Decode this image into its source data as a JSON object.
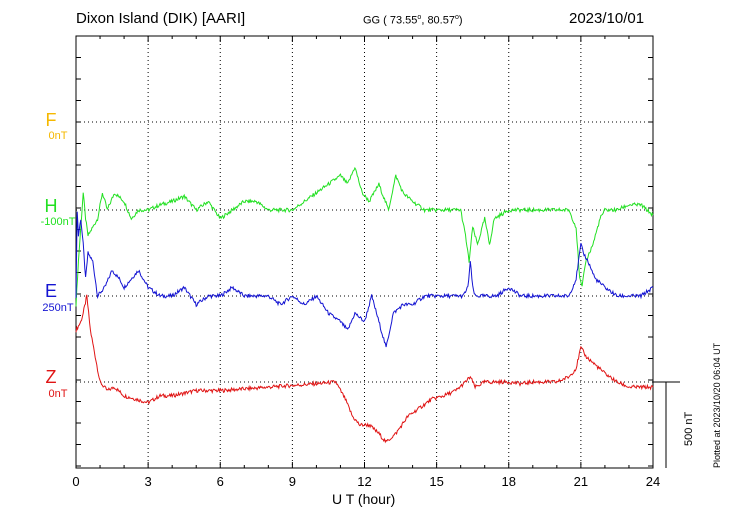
{
  "header": {
    "station": "Dixon Island (DIK)  [AARI]",
    "coords": "GG ( 73.55°,  80.57°)",
    "date": "2023/10/01"
  },
  "footer": {
    "plotted": "Plotted at 2023/10/20 06:04 UT",
    "scale": "500 nT"
  },
  "colors": {
    "F": "#f5b800",
    "H": "#22e022",
    "E": "#1414d2",
    "Z": "#e01414",
    "axis": "#000000"
  },
  "components": [
    {
      "name": "F",
      "base": "0nT"
    },
    {
      "name": "H",
      "base": "-100nT"
    },
    {
      "name": "E",
      "base": "250nT"
    },
    {
      "name": "Z",
      "base": "0nT"
    }
  ],
  "chart_data": {
    "type": "line",
    "xlabel": "U T (hour)",
    "xlim": [
      0,
      24
    ],
    "xticks": [
      "0",
      "3",
      "6",
      "9",
      "12",
      "15",
      "18",
      "21",
      "24"
    ],
    "y_unit": "nT",
    "scale_bar_nT": 500,
    "series": [
      {
        "name": "F",
        "x": [],
        "y": []
      },
      {
        "name": "H",
        "x": [
          0,
          0.1,
          0.2,
          0.3,
          0.4,
          0.5,
          0.7,
          0.9,
          1.1,
          1.3,
          1.6,
          2.0,
          2.3,
          2.6,
          3.0,
          3.5,
          4.0,
          4.5,
          5.0,
          5.5,
          6.0,
          6.5,
          7.0,
          7.5,
          8.0,
          8.5,
          9.0,
          9.5,
          10.0,
          10.5,
          11.0,
          11.3,
          11.6,
          11.9,
          12.2,
          12.6,
          13.0,
          13.3,
          13.6,
          14.0,
          14.5,
          15.0,
          15.5,
          16.0,
          16.2,
          16.35,
          16.5,
          16.7,
          17.0,
          17.2,
          17.4,
          18.0,
          18.5,
          19.0,
          19.5,
          20.0,
          20.5,
          20.8,
          20.95,
          21.05,
          21.2,
          21.5,
          21.8,
          22.0,
          22.5,
          23.0,
          23.5,
          24.0
        ],
        "y": [
          -550,
          -300,
          -100,
          100,
          -50,
          -150,
          -100,
          -50,
          100,
          0,
          100,
          50,
          -50,
          0,
          0,
          30,
          50,
          80,
          0,
          50,
          -50,
          0,
          50,
          50,
          0,
          0,
          0,
          50,
          100,
          150,
          200,
          150,
          250,
          100,
          50,
          150,
          0,
          200,
          100,
          50,
          0,
          0,
          0,
          0,
          -150,
          -300,
          -100,
          -200,
          -50,
          -200,
          -50,
          0,
          0,
          0,
          0,
          0,
          0,
          -100,
          -400,
          -450,
          -300,
          -200,
          -50,
          0,
          0,
          30,
          30,
          -30
        ]
      },
      {
        "name": "E",
        "x": [
          0,
          0.05,
          0.1,
          0.2,
          0.3,
          0.4,
          0.5,
          0.7,
          0.9,
          1.2,
          1.5,
          1.8,
          2.0,
          2.3,
          2.6,
          3.0,
          3.5,
          4.0,
          4.5,
          5.0,
          5.5,
          6.0,
          6.5,
          7.0,
          7.5,
          8.0,
          8.5,
          9.0,
          9.5,
          10.0,
          10.5,
          11.0,
          11.3,
          11.6,
          12.0,
          12.3,
          12.6,
          12.9,
          13.2,
          13.6,
          14.0,
          14.5,
          15.0,
          15.5,
          15.9,
          16.1,
          16.3,
          16.4,
          16.5,
          16.6,
          17.0,
          17.5,
          18.0,
          18.5,
          19.0,
          19.5,
          20.0,
          20.5,
          20.8,
          21.0,
          21.1,
          21.3,
          21.6,
          22.0,
          22.5,
          23.0,
          23.5,
          24.0
        ],
        "y": [
          0,
          500,
          350,
          450,
          300,
          100,
          250,
          200,
          0,
          50,
          150,
          100,
          50,
          100,
          150,
          50,
          0,
          0,
          50,
          -50,
          0,
          0,
          50,
          0,
          0,
          0,
          -50,
          0,
          -50,
          0,
          -100,
          -150,
          -200,
          -100,
          -150,
          0,
          -150,
          -300,
          -100,
          -50,
          -50,
          0,
          0,
          0,
          0,
          0,
          50,
          200,
          50,
          0,
          0,
          0,
          50,
          0,
          0,
          0,
          0,
          0,
          100,
          300,
          250,
          200,
          100,
          50,
          0,
          0,
          0,
          50
        ]
      },
      {
        "name": "Z",
        "x": [
          0,
          0.2,
          0.3,
          0.45,
          0.6,
          0.8,
          1.0,
          1.3,
          1.6,
          2.0,
          2.5,
          3.0,
          3.5,
          4.0,
          5.0,
          6.0,
          7.0,
          8.0,
          9.0,
          10.0,
          10.8,
          11.2,
          11.5,
          11.8,
          12.2,
          12.6,
          12.9,
          13.3,
          13.8,
          14.3,
          14.8,
          15.3,
          15.8,
          16.2,
          16.4,
          16.6,
          17.0,
          17.5,
          18.0,
          18.5,
          19.0,
          19.5,
          20.0,
          20.5,
          20.8,
          21.0,
          21.2,
          21.6,
          22.0,
          22.5,
          23.0,
          24.0
        ],
        "y": [
          300,
          350,
          400,
          500,
          300,
          150,
          0,
          -50,
          -30,
          -80,
          -100,
          -120,
          -80,
          -80,
          -50,
          -50,
          -40,
          -30,
          -20,
          -10,
          0,
          -100,
          -200,
          -250,
          -250,
          -300,
          -350,
          -300,
          -200,
          -150,
          -100,
          -80,
          -50,
          0,
          30,
          -30,
          0,
          0,
          0,
          -10,
          0,
          0,
          0,
          30,
          80,
          200,
          150,
          100,
          50,
          0,
          -30,
          -30
        ]
      }
    ]
  }
}
